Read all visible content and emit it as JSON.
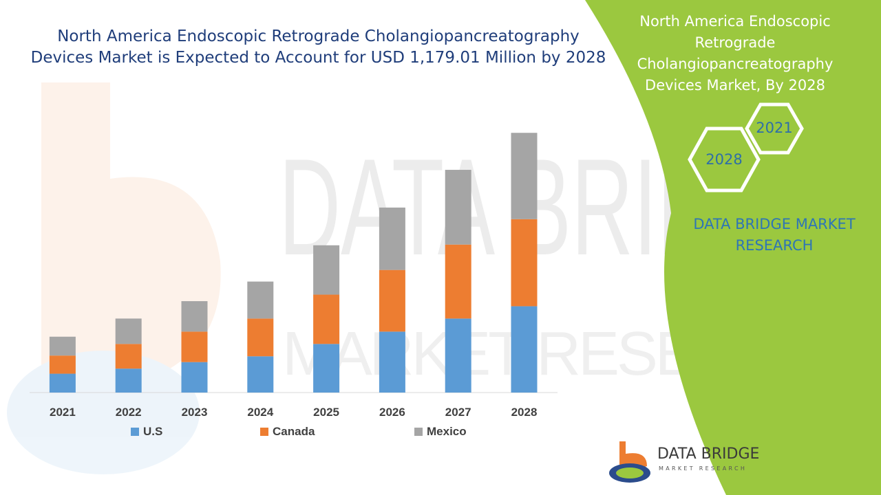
{
  "main_title": "North America Endoscopic Retrograde Cholangiopancreatography Devices Market is Expected to Account for USD 1,179.01 Million by 2028",
  "side_panel": {
    "title": "North America Endoscopic Retrograde Cholangiopancreatography Devices Market, By 2028",
    "hex_years": [
      "2021",
      "2028"
    ],
    "brand": "DATA BRIDGE MARKET RESEARCH",
    "colors": {
      "green": "#9bc83f",
      "hex_stroke": "#ffffff",
      "brand_text": "#2e75b6"
    }
  },
  "watermark": {
    "line1": "DATA BRIDGE",
    "line2": "MARKET RESEARCH"
  },
  "logo": {
    "name": "DATA BRIDGE",
    "sub": "MARKET RESEARCH",
    "icon": "data-bridge-logo-icon"
  },
  "chart_data": {
    "type": "bar",
    "stacked": true,
    "categories": [
      "2021",
      "2022",
      "2023",
      "2024",
      "2025",
      "2026",
      "2027",
      "2028"
    ],
    "series": [
      {
        "name": "U.S",
        "color": "#5b9bd5",
        "values": [
          13,
          16.5,
          21,
          25,
          33.5,
          42,
          51,
          59.5
        ]
      },
      {
        "name": "Canada",
        "color": "#ed7d31",
        "values": [
          12.5,
          17,
          21,
          26,
          34,
          42.5,
          51,
          60
        ]
      },
      {
        "name": "Mexico",
        "color": "#a5a5a5",
        "values": [
          13,
          17.5,
          21,
          25.5,
          34,
          43,
          51.5,
          59.5
        ]
      }
    ],
    "ylim": [
      0,
      190
    ],
    "legend_position": "bottom",
    "grid": false,
    "title": "",
    "xlabel": "",
    "ylabel": ""
  }
}
